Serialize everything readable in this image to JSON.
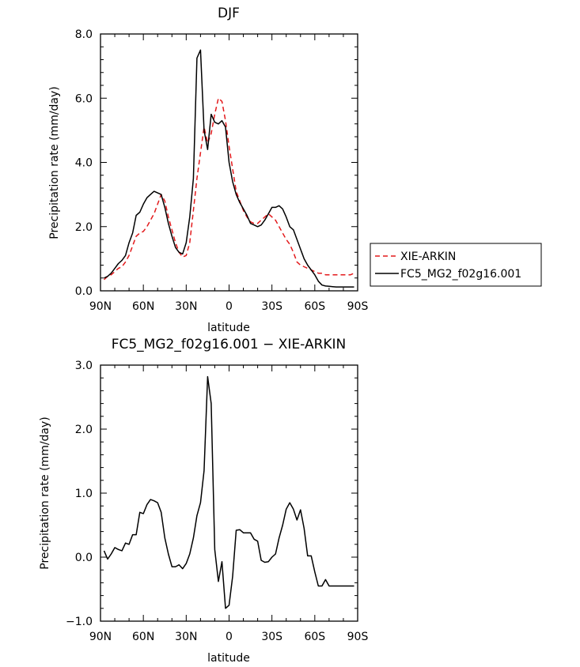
{
  "chart_data": [
    {
      "type": "line",
      "title": "DJF",
      "xlabel": "latitude",
      "ylabel": "Precipitation rate (mm/day)",
      "xlim": [
        -90,
        90
      ],
      "ylim": [
        0,
        8
      ],
      "xticks": [
        -90,
        -60,
        -30,
        0,
        30,
        60,
        90
      ],
      "xticklabels": [
        "90N",
        "60N",
        "30N",
        "0",
        "30S",
        "60S",
        "90S"
      ],
      "yticks": [
        0,
        2,
        4,
        6,
        8
      ],
      "yticklabels": [
        "0.0",
        "2.0",
        "4.0",
        "6.0",
        "8.0"
      ],
      "legend_position": "right",
      "series": [
        {
          "name": "XIE-ARKIN",
          "color": "#e31a1c",
          "dash": "dashed",
          "x": [
            -87.5,
            -85,
            -82.5,
            -80,
            -77.5,
            -75,
            -72.5,
            -70,
            -67.5,
            -65,
            -62.5,
            -60,
            -57.5,
            -55,
            -52.5,
            -50,
            -47.5,
            -45,
            -42.5,
            -40,
            -37.5,
            -35,
            -32.5,
            -30,
            -27.5,
            -25,
            -22.5,
            -20,
            -17.5,
            -15,
            -12.5,
            -10,
            -7.5,
            -5,
            -2.5,
            0,
            2.5,
            5,
            7.5,
            10,
            12.5,
            15,
            17.5,
            20,
            22.5,
            25,
            27.5,
            30,
            32.5,
            35,
            37.5,
            40,
            42.5,
            45,
            47.5,
            50,
            52.5,
            55,
            57.5,
            60,
            62.5,
            65,
            67.5,
            70,
            72.5,
            75,
            77.5,
            80,
            82.5,
            85,
            87.5
          ],
          "y": [
            0.35,
            0.45,
            0.5,
            0.6,
            0.7,
            0.75,
            0.9,
            1.1,
            1.4,
            1.7,
            1.8,
            1.85,
            2.0,
            2.2,
            2.4,
            2.7,
            3.0,
            2.8,
            2.3,
            1.9,
            1.5,
            1.2,
            1.05,
            1.1,
            1.5,
            2.5,
            3.5,
            4.3,
            5.1,
            4.6,
            4.9,
            5.5,
            6.0,
            5.9,
            5.3,
            4.5,
            3.8,
            3.1,
            2.8,
            2.5,
            2.3,
            2.15,
            2.1,
            2.1,
            2.2,
            2.3,
            2.4,
            2.3,
            2.2,
            2.0,
            1.8,
            1.6,
            1.45,
            1.2,
            0.9,
            0.8,
            0.75,
            0.7,
            0.65,
            0.6,
            0.55,
            0.55,
            0.5,
            0.5,
            0.5,
            0.5,
            0.5,
            0.5,
            0.5,
            0.5,
            0.55
          ]
        },
        {
          "name": "FC5_MG2_f02g16.001",
          "color": "#000000",
          "dash": "solid",
          "x": [
            -87.5,
            -85,
            -82.5,
            -80,
            -77.5,
            -75,
            -72.5,
            -70,
            -67.5,
            -65,
            -62.5,
            -60,
            -57.5,
            -55,
            -52.5,
            -50,
            -47.5,
            -45,
            -42.5,
            -40,
            -37.5,
            -35,
            -32.5,
            -30,
            -27.5,
            -25,
            -22.5,
            -20,
            -17.5,
            -15,
            -12.5,
            -10,
            -7.5,
            -5,
            -2.5,
            0,
            2.5,
            5,
            7.5,
            10,
            12.5,
            15,
            17.5,
            20,
            22.5,
            25,
            27.5,
            30,
            32.5,
            35,
            37.5,
            40,
            42.5,
            45,
            47.5,
            50,
            52.5,
            55,
            57.5,
            60,
            62.5,
            65,
            67.5,
            70,
            72.5,
            75,
            77.5,
            80,
            82.5,
            85,
            87.5
          ],
          "y": [
            0.4,
            0.45,
            0.55,
            0.7,
            0.85,
            0.95,
            1.1,
            1.5,
            1.8,
            2.35,
            2.45,
            2.7,
            2.9,
            3.0,
            3.1,
            3.05,
            3.0,
            2.6,
            2.1,
            1.7,
            1.35,
            1.2,
            1.15,
            1.5,
            2.3,
            3.5,
            7.25,
            7.5,
            5.0,
            4.4,
            5.5,
            5.25,
            5.2,
            5.3,
            5.1,
            4.0,
            3.4,
            3.0,
            2.75,
            2.55,
            2.35,
            2.1,
            2.05,
            2.0,
            2.05,
            2.2,
            2.4,
            2.6,
            2.6,
            2.65,
            2.55,
            2.3,
            2.0,
            1.9,
            1.6,
            1.3,
            1.0,
            0.8,
            0.65,
            0.5,
            0.3,
            0.18,
            0.15,
            0.14,
            0.13,
            0.12,
            0.12,
            0.12,
            0.12,
            0.12,
            0.12
          ]
        }
      ]
    },
    {
      "type": "line",
      "title": "FC5_MG2_f02g16.001 − XIE-ARKIN",
      "xlabel": "latitude",
      "ylabel": "Precipitation rate (mm/day)",
      "xlim": [
        -90,
        90
      ],
      "ylim": [
        -1,
        3
      ],
      "xticks": [
        -90,
        -60,
        -30,
        0,
        30,
        60,
        90
      ],
      "xticklabels": [
        "90N",
        "60N",
        "30N",
        "0",
        "30S",
        "60S",
        "90S"
      ],
      "yticks": [
        -1,
        0,
        1,
        2,
        3
      ],
      "yticklabels": [
        "−1.0",
        "0.0",
        "1.0",
        "2.0",
        "3.0"
      ],
      "series": [
        {
          "color": "#000000",
          "dash": "solid",
          "x": [
            -87.5,
            -85,
            -82.5,
            -80,
            -77.5,
            -75,
            -72.5,
            -70,
            -67.5,
            -65,
            -62.5,
            -60,
            -57.5,
            -55,
            -52.5,
            -50,
            -47.5,
            -45,
            -42.5,
            -40,
            -37.5,
            -35,
            -32.5,
            -30,
            -27.5,
            -25,
            -22.5,
            -20,
            -17.5,
            -15,
            -12.5,
            -10,
            -7.5,
            -5,
            -2.5,
            0,
            2.5,
            5,
            7.5,
            10,
            12.5,
            15,
            17.5,
            20,
            22.5,
            25,
            27.5,
            30,
            32.5,
            35,
            37.5,
            40,
            42.5,
            45,
            47.5,
            50,
            52.5,
            55,
            57.5,
            60,
            62.5,
            65,
            67.5,
            70,
            72.5,
            75,
            77.5,
            80,
            82.5,
            85,
            87.5
          ],
          "y": [
            0.1,
            -0.03,
            0.05,
            0.15,
            0.12,
            0.1,
            0.22,
            0.2,
            0.35,
            0.35,
            0.7,
            0.68,
            0.82,
            0.9,
            0.88,
            0.85,
            0.7,
            0.3,
            0.05,
            -0.15,
            -0.15,
            -0.12,
            -0.18,
            -0.1,
            0.05,
            0.3,
            0.65,
            0.85,
            1.35,
            2.82,
            2.4,
            0.12,
            -0.38,
            -0.07,
            -0.8,
            -0.75,
            -0.3,
            0.42,
            0.43,
            0.38,
            0.38,
            0.38,
            0.28,
            0.25,
            -0.05,
            -0.08,
            -0.07,
            0.0,
            0.05,
            0.3,
            0.5,
            0.75,
            0.85,
            0.75,
            0.58,
            0.74,
            0.45,
            0.02,
            0.02,
            -0.23,
            -0.45,
            -0.45,
            -0.35,
            -0.45,
            -0.45,
            -0.45,
            -0.45,
            -0.45,
            -0.45,
            -0.45,
            -0.45
          ]
        }
      ]
    }
  ]
}
